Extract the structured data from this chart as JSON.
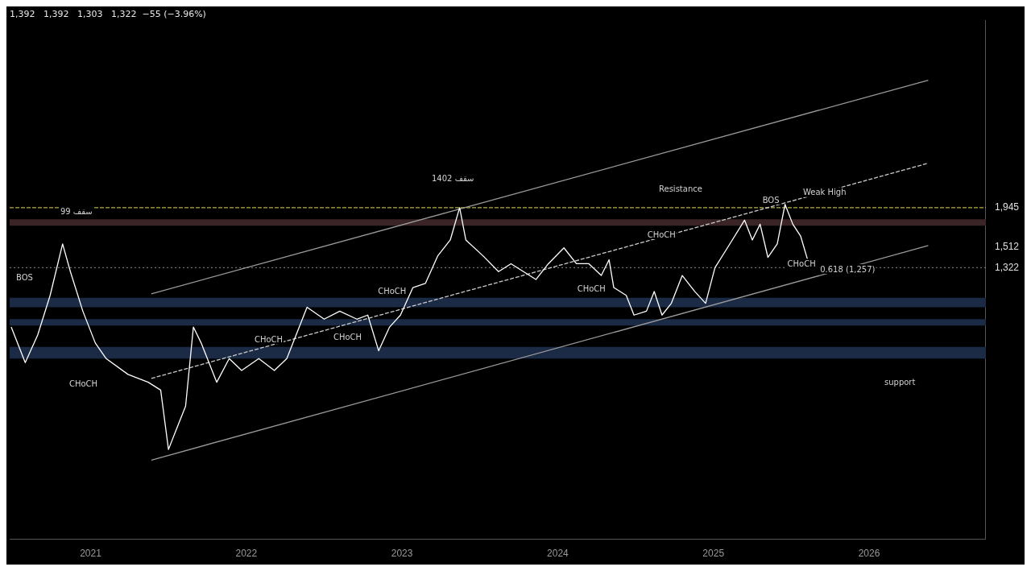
{
  "chart_data": {
    "type": "line",
    "subtitle": "1,392   1,392   1,303   1,322  −55 (−3.96%)",
    "log": "y",
    "grid": false,
    "legend": false,
    "marker": "none",
    "xlim": [
      2020.48,
      2026.75
    ],
    "xticks": [
      {
        "value": 2021,
        "label": "2021"
      },
      {
        "value": 2022,
        "label": "2022"
      },
      {
        "value": 2023,
        "label": "2023"
      },
      {
        "value": 2024,
        "label": "2024"
      },
      {
        "value": 2025,
        "label": "2025"
      },
      {
        "value": 2026,
        "label": "2026"
      }
    ],
    "ylim": [
      230,
      6500
    ],
    "yticks": [
      {
        "value": 1322,
        "label": "1,322"
      },
      {
        "value": 1512,
        "label": "1,512"
      },
      {
        "value": 1945,
        "label": "1,945"
      }
    ],
    "series": [
      {
        "color": "#ffffff",
        "line_style": "solid",
        "x": [
          2020.49,
          2020.58,
          2020.66,
          2020.74,
          2020.82,
          2020.87,
          2020.95,
          2021.03,
          2021.1,
          2021.24,
          2021.37,
          2021.45,
          2021.5,
          2021.55,
          2021.61,
          2021.66,
          2021.71,
          2021.81,
          2021.89,
          2021.97,
          2022.08,
          2022.18,
          2022.26,
          2022.34,
          2022.39,
          2022.5,
          2022.6,
          2022.71,
          2022.78,
          2022.85,
          2022.92,
          2022.99,
          2023.07,
          2023.15,
          2023.23,
          2023.31,
          2023.37,
          2023.41,
          2023.52,
          2023.62,
          2023.7,
          2023.78,
          2023.86,
          2023.94,
          2024.04,
          2024.12,
          2024.2,
          2024.28,
          2024.33,
          2024.36,
          2024.44,
          2024.49,
          2024.57,
          2024.62,
          2024.67,
          2024.73,
          2024.8,
          2024.88,
          2024.95,
          2025.01,
          2025.09,
          2025.2,
          2025.25,
          2025.3,
          2025.35,
          2025.41,
          2025.46,
          2025.51,
          2025.56,
          2025.62
        ],
        "values": [
          902,
          717,
          857,
          1106,
          1540,
          1289,
          999,
          814,
          736,
          665,
          632,
          601,
          410,
          466,
          542,
          902,
          814,
          632,
          736,
          682,
          736,
          682,
          736,
          902,
          1025,
          949,
          999,
          949,
          974,
          774,
          902,
          974,
          1163,
          1194,
          1427,
          1580,
          1945,
          1580,
          1427,
          1289,
          1356,
          1289,
          1225,
          1356,
          1502,
          1356,
          1356,
          1257,
          1391,
          1163,
          1106,
          974,
          999,
          1134,
          974,
          1051,
          1257,
          1134,
          1051,
          1322,
          1502,
          1795,
          1580,
          1749,
          1413,
          1540,
          1987,
          1749,
          1621,
          1322
        ]
      },
      {
        "type": "line",
        "color": "#9a9a9a",
        "line_style": "solid",
        "x": [
          2021.39,
          2026.38
        ],
        "values": [
          1117,
          4421
        ]
      },
      {
        "type": "line",
        "color": "#cccccc",
        "line_style": "dashed",
        "x": [
          2021.39,
          2026.38
        ],
        "values": [
          648,
          2590
        ]
      },
      {
        "type": "line",
        "color": "#9a9a9a",
        "line_style": "solid",
        "x": [
          2021.39,
          2026.38
        ],
        "values": [
          383,
          1524
        ]
      }
    ],
    "ref_lines": [
      {
        "axis": "y",
        "value": 1945,
        "color": "#e6d94a",
        "line_style": "dashed"
      },
      {
        "axis": "y",
        "value": 1322,
        "color": "#8a8a8a",
        "line_style": "dotted"
      }
    ],
    "bands": [
      {
        "axis": "y",
        "from": 1732,
        "to": 1805,
        "color": "#3a2426"
      },
      {
        "axis": "y",
        "from": 1025,
        "to": 1089,
        "color": "#1b2a45"
      },
      {
        "axis": "y",
        "from": 911,
        "to": 949,
        "color": "#1b2a45"
      },
      {
        "axis": "y",
        "from": 736,
        "to": 794,
        "color": "#1b2a45"
      }
    ],
    "annotations": [
      "Resistance",
      "support",
      "1402 سقف",
      "BOS",
      "CHoCH",
      "CHoCH",
      "CHoCH",
      {
        "text": "99 سقف",
        "x": 2020.79,
        "y": 1822
      },
      {
        "text": "CHoCH",
        "x": 2022.83,
        "y": 1089
      },
      {
        "text": "CHoCH",
        "x": 2024.11,
        "y": 1106
      },
      {
        "text": "CHoCH",
        "x": 2024.56,
        "y": 1572
      },
      {
        "text": "BOS",
        "x": 2025.3,
        "y": 1963
      },
      {
        "text": "Weak High",
        "x": 2025.56,
        "y": 2060
      },
      {
        "text": "CHoCH",
        "x": 2025.46,
        "y": 1302
      },
      {
        "text": "0.618 (1,257)",
        "x": 2025.67,
        "y": 1257
      }
    ]
  }
}
